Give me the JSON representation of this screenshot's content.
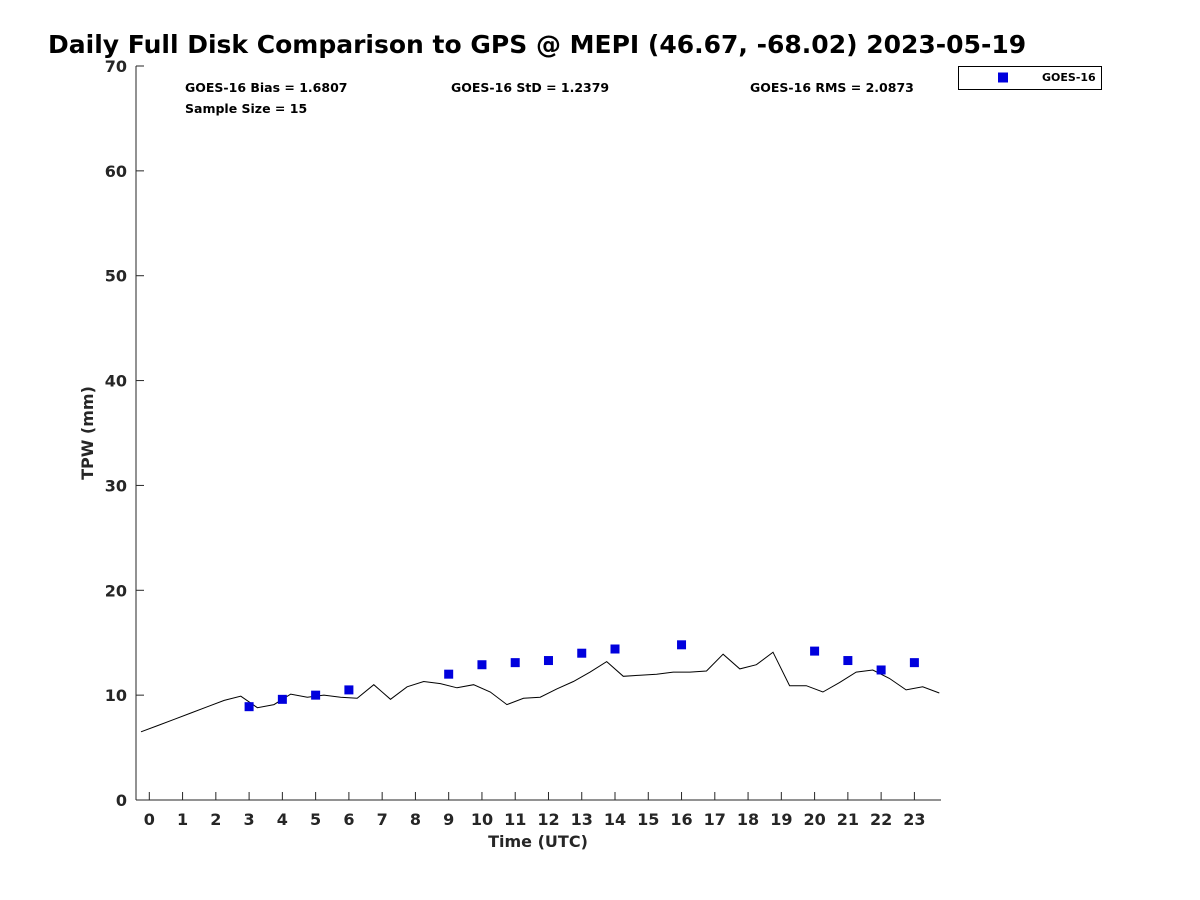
{
  "chart_data": {
    "type": "scatter",
    "title": "Daily Full Disk Comparison to GPS @ MEPI (46.67, -68.02) 2023-05-19",
    "xlabel": "Time (UTC)",
    "ylabel": "TPW (mm)",
    "xlim": [
      -0.4,
      23.8
    ],
    "ylim": [
      0,
      70
    ],
    "xticks": [
      0,
      1,
      2,
      3,
      4,
      5,
      6,
      7,
      8,
      9,
      10,
      11,
      12,
      13,
      14,
      15,
      16,
      17,
      18,
      19,
      20,
      21,
      22,
      23
    ],
    "yticks": [
      0,
      10,
      20,
      30,
      40,
      50,
      60,
      70
    ],
    "grid": false,
    "legend_position": "top-right outside",
    "stats": {
      "bias": "GOES-16 Bias = 1.6807",
      "std": "GOES-16 StD = 1.2379",
      "rms": "GOES-16 RMS = 2.0873",
      "sample": "Sample Size = 15"
    },
    "series": [
      {
        "name": "GOES-16",
        "kind": "scatter",
        "marker": "square",
        "color": "#0000dd",
        "x": [
          3,
          4,
          5,
          6,
          9,
          10,
          11,
          12,
          13,
          14,
          16,
          20,
          21,
          22,
          23
        ],
        "y": [
          8.9,
          9.6,
          10.0,
          10.5,
          12.0,
          12.9,
          13.1,
          13.3,
          14.0,
          14.4,
          14.8,
          14.2,
          13.3,
          12.4,
          13.1
        ]
      },
      {
        "kind": "line",
        "color": "#000000",
        "x": [
          -0.25,
          0.25,
          0.75,
          1.25,
          1.75,
          2.25,
          2.75,
          3.25,
          3.75,
          4.25,
          4.75,
          5.25,
          5.75,
          6.25,
          6.75,
          7.25,
          7.75,
          8.25,
          8.75,
          9.25,
          9.75,
          10.25,
          10.75,
          11.25,
          11.75,
          12.25,
          12.75,
          13.25,
          13.75,
          14.25,
          14.75,
          15.25,
          15.75,
          16.25,
          16.75,
          17.25,
          17.75,
          18.25,
          18.75,
          19.25,
          19.75,
          20.25,
          20.75,
          21.25,
          21.75,
          22.25,
          22.75,
          23.25,
          23.75
        ],
        "y": [
          6.5,
          7.1,
          7.7,
          8.3,
          8.9,
          9.5,
          9.9,
          8.8,
          9.1,
          10.1,
          9.8,
          10.0,
          9.8,
          9.7,
          11.0,
          9.6,
          10.8,
          11.3,
          11.1,
          10.7,
          11.0,
          10.3,
          9.1,
          9.7,
          9.8,
          10.6,
          11.3,
          12.2,
          13.2,
          11.8,
          11.9,
          12.0,
          12.2,
          12.2,
          12.3,
          13.9,
          12.5,
          12.9,
          14.1,
          10.9,
          10.9,
          10.3,
          11.2,
          12.2,
          12.4,
          11.6,
          10.5,
          10.8,
          10.2
        ]
      }
    ]
  }
}
